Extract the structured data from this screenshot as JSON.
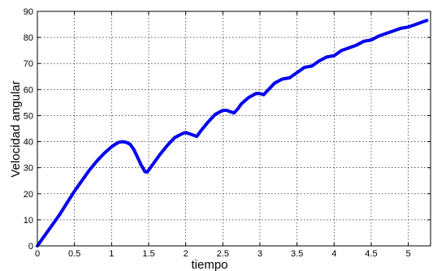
{
  "chart_data": {
    "type": "line",
    "title": "",
    "xlabel": "tiempo",
    "ylabel": "Velocidad angular",
    "xlim": [
      0,
      5.3
    ],
    "ylim": [
      0,
      90
    ],
    "xticks": [
      0,
      0.5,
      1,
      1.5,
      2,
      2.5,
      3,
      3.5,
      4,
      4.5,
      5
    ],
    "xtick_labels": [
      "0",
      "0.5",
      "1",
      "1.5",
      "2",
      "2.5",
      "3",
      "3.5",
      "4",
      "4.5",
      "5"
    ],
    "yticks": [
      0,
      10,
      20,
      30,
      40,
      50,
      60,
      70,
      80,
      90
    ],
    "ytick_labels": [
      "0",
      "10",
      "20",
      "30",
      "40",
      "50",
      "60",
      "70",
      "80",
      "90"
    ],
    "grid": true,
    "grid_style": "dotted",
    "series": [
      {
        "color": "#0000ee",
        "x": [
          0,
          0.1,
          0.2,
          0.3,
          0.4,
          0.5,
          0.6,
          0.7,
          0.8,
          0.9,
          1.0,
          1.05,
          1.1,
          1.15,
          1.2,
          1.25,
          1.3,
          1.35,
          1.4,
          1.45,
          1.48,
          1.55,
          1.65,
          1.75,
          1.85,
          1.95,
          2.0,
          2.05,
          2.1,
          2.15,
          2.2,
          2.3,
          2.4,
          2.5,
          2.55,
          2.6,
          2.65,
          2.7,
          2.75,
          2.85,
          2.95,
          3.0,
          3.05,
          3.1,
          3.2,
          3.3,
          3.4,
          3.5,
          3.6,
          3.7,
          3.8,
          3.9,
          4.0,
          4.1,
          4.2,
          4.3,
          4.4,
          4.5,
          4.6,
          4.7,
          4.8,
          4.9,
          5.0,
          5.1,
          5.2,
          5.25
        ],
        "y": [
          0,
          4,
          8,
          12,
          16.5,
          21,
          25,
          29,
          32.5,
          35.5,
          38,
          39,
          39.8,
          40,
          39.7,
          39,
          37,
          34,
          31,
          28.5,
          28.3,
          31,
          35,
          38.5,
          41.5,
          43,
          43.5,
          43,
          42.5,
          42,
          44,
          47.5,
          50.5,
          52,
          52,
          51.5,
          51,
          52.5,
          54.5,
          57,
          58.5,
          58.5,
          58,
          59.5,
          62.5,
          64,
          64.5,
          66.5,
          68.5,
          69,
          71,
          72.5,
          73,
          75,
          76,
          77,
          78.5,
          79,
          80.5,
          81.5,
          82.5,
          83.5,
          84,
          85,
          86,
          86.5
        ]
      }
    ]
  }
}
